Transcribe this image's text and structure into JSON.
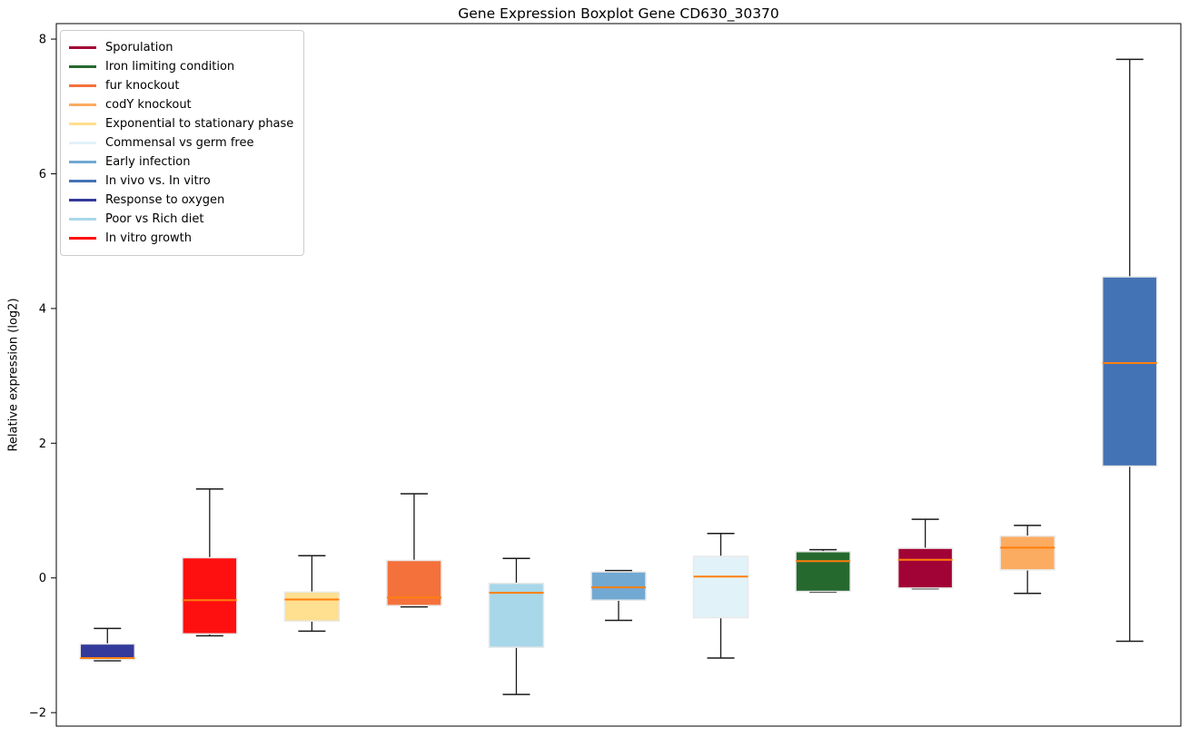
{
  "title": "Gene Expression Boxplot Gene CD630_30370",
  "chart_data": {
    "type": "boxplot",
    "title": "Gene Expression Boxplot Gene CD630_30370",
    "xlabel": "",
    "ylabel": "Relative expression (log2)",
    "ylim": [
      -2.2,
      8.23
    ],
    "grid": false,
    "legend_position": "upper left",
    "yticks": [
      {
        "value": 8,
        "label": "8"
      },
      {
        "value": 6,
        "label": "6"
      },
      {
        "value": 4,
        "label": "4"
      },
      {
        "value": 2,
        "label": "2"
      },
      {
        "value": 0,
        "label": "0"
      },
      {
        "value": -2,
        "label": "−2"
      }
    ],
    "legend": [
      {
        "label": "Sporulation",
        "color": "#a20336"
      },
      {
        "label": "Iron limiting condition",
        "color": "#26692f"
      },
      {
        "label": "fur knockout",
        "color": "#f4713c"
      },
      {
        "label": "codY knockout",
        "color": "#fcac61"
      },
      {
        "label": "Exponential to stationary phase",
        "color": "#ffdf90"
      },
      {
        "label": "Commensal vs germ free",
        "color": "#e2f2f9"
      },
      {
        "label": "Early infection",
        "color": "#72a9d3"
      },
      {
        "label": "In vivo vs. In vitro",
        "color": "#4473b5"
      },
      {
        "label": "Response to oxygen",
        "color": "#333a9b"
      },
      {
        "label": "Poor vs Rich diet",
        "color": "#a8d7e9"
      },
      {
        "label": "In vitro growth",
        "color": "#ff1010"
      }
    ],
    "series": [
      {
        "name": "Response to oxygen",
        "color": "#333a9b",
        "whislo": -1.23,
        "q1": -1.21,
        "med": -1.19,
        "q3": -0.98,
        "whishi": -0.75
      },
      {
        "name": "In vitro growth",
        "color": "#ff1010",
        "whislo": -0.86,
        "q1": -0.83,
        "med": -0.33,
        "q3": 0.3,
        "whishi": 1.32
      },
      {
        "name": "Exponential to stationary phase",
        "color": "#ffdf90",
        "whislo": -0.79,
        "q1": -0.64,
        "med": -0.32,
        "q3": -0.21,
        "whishi": 0.33
      },
      {
        "name": "fur knockout",
        "color": "#f4713c",
        "whislo": -0.43,
        "q1": -0.41,
        "med": -0.29,
        "q3": 0.26,
        "whishi": 1.25
      },
      {
        "name": "Poor vs Rich diet",
        "color": "#a8d7e9",
        "whislo": -1.73,
        "q1": -1.03,
        "med": -0.22,
        "q3": -0.08,
        "whishi": 0.29
      },
      {
        "name": "Early infection",
        "color": "#72a9d3",
        "whislo": -0.63,
        "q1": -0.33,
        "med": -0.14,
        "q3": 0.09,
        "whishi": 0.11
      },
      {
        "name": "Commensal vs germ free",
        "color": "#e2f2f9",
        "whislo": -1.19,
        "q1": -0.59,
        "med": 0.02,
        "q3": 0.32,
        "whishi": 0.66
      },
      {
        "name": "Iron limiting condition",
        "color": "#26692f",
        "whislo": -0.21,
        "q1": -0.2,
        "med": 0.25,
        "q3": 0.39,
        "whishi": 0.42
      },
      {
        "name": "Sporulation",
        "color": "#a20336",
        "whislo": -0.16,
        "q1": -0.15,
        "med": 0.27,
        "q3": 0.44,
        "whishi": 0.87
      },
      {
        "name": "codY knockout",
        "color": "#fcac61",
        "whislo": -0.23,
        "q1": 0.12,
        "med": 0.45,
        "q3": 0.62,
        "whishi": 0.78
      },
      {
        "name": "In vivo vs. In vitro",
        "color": "#4473b5",
        "whislo": -0.94,
        "q1": 1.66,
        "med": 3.19,
        "q3": 4.47,
        "whishi": 7.7
      }
    ],
    "style": {
      "median_color": "#ff7f0e",
      "whisker_color": "#1a1a1a",
      "cap_color": "#1a1a1a",
      "box_edge_color": "#e9e9e9",
      "spine_color": "#000000",
      "background": "#ffffff"
    }
  }
}
